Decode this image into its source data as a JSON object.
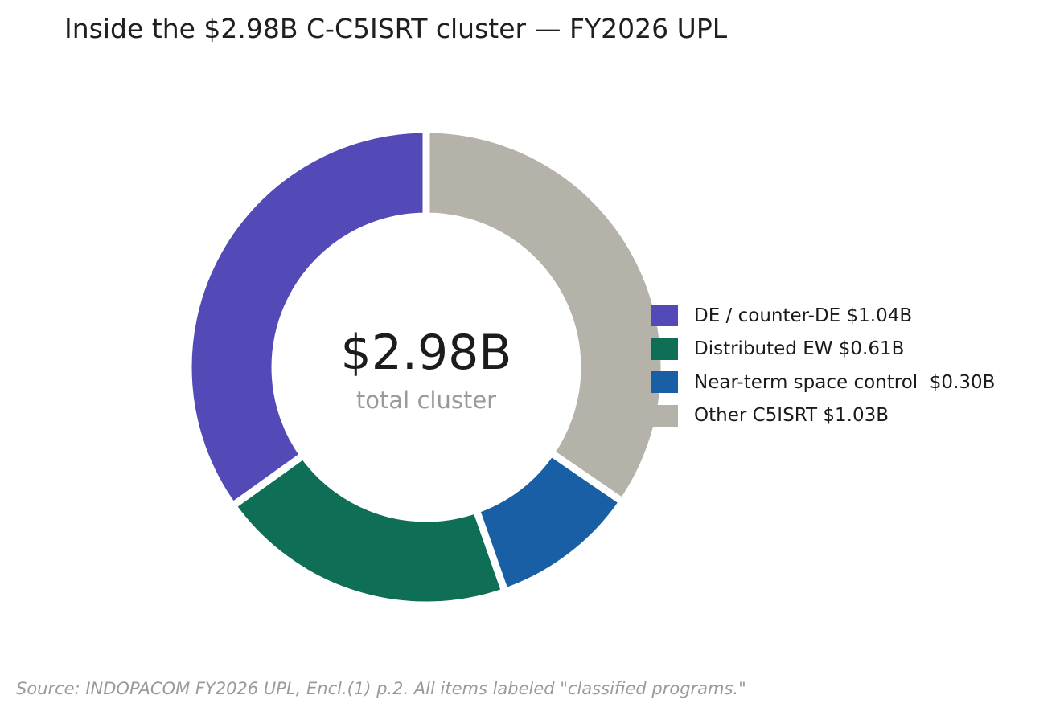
{
  "chart_data": {
    "type": "pie",
    "variant": "donut",
    "title": "Inside the $2.98B C-C5ISRT cluster — FY2026 UPL",
    "center_label": {
      "value": "$2.98B",
      "caption": "total cluster"
    },
    "total": 2.98,
    "unit": "$B",
    "slices": [
      {
        "label": "DE / counter-DE $1.04B",
        "value": 1.04,
        "color": "#534AB7"
      },
      {
        "label": "Distributed EW $0.61B",
        "value": 0.61,
        "color": "#0F6E56"
      },
      {
        "label": "Near-term space control  $0.30B",
        "value": 0.3,
        "color": "#185FA5"
      },
      {
        "label": "Other C5ISRT $1.03B",
        "value": 1.03,
        "color": "#B4B2A9"
      }
    ],
    "start_direction": "top",
    "slice_order": "counter-clockwise",
    "legend_position": "right",
    "source": "Source: INDOPACOM FY2026 UPL, Encl.(1) p.2. All items labeled \"classified programs.\""
  }
}
